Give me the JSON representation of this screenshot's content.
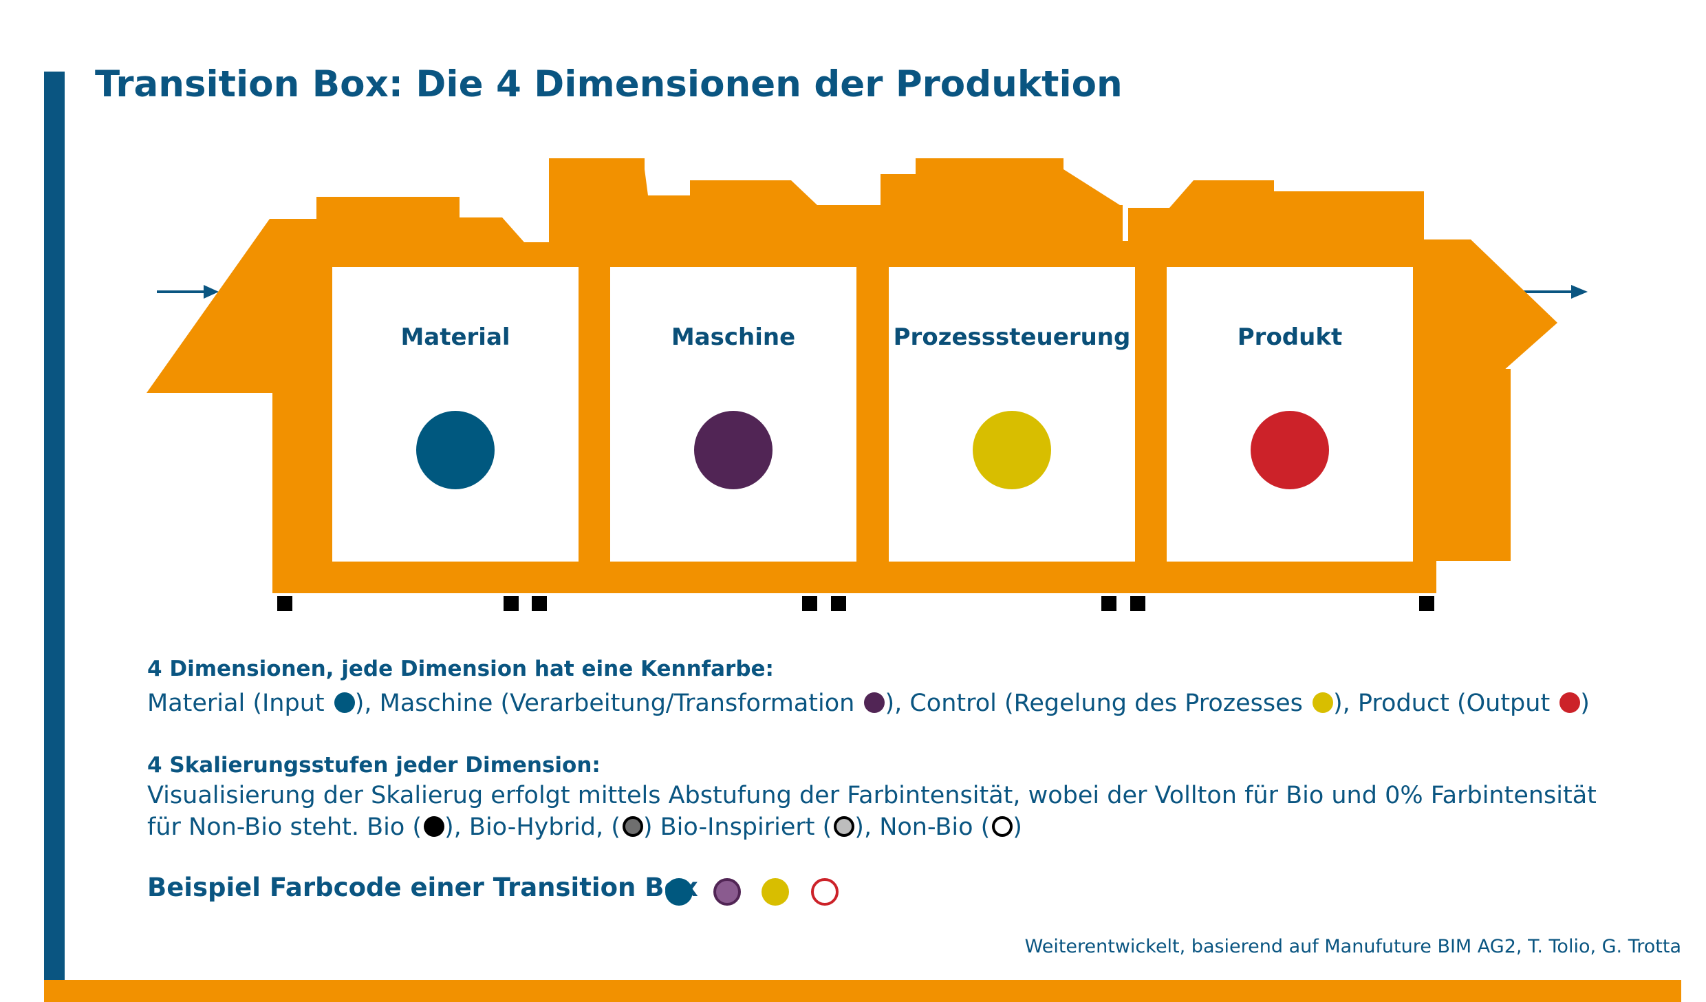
{
  "title": "Transition Box: Die 4 Dimensionen der Produktion",
  "colors": {
    "accent_blue": "#0a5581",
    "machine_orange": "#f29100",
    "material": "#00587f",
    "maschine": "#512555",
    "prozesssteuerung": "#d8be00",
    "produkt": "#cc2229"
  },
  "dimensions": [
    {
      "label": "Material",
      "color": "#00587f"
    },
    {
      "label": "Maschine",
      "color": "#512555"
    },
    {
      "label": "Prozesssteuerung",
      "color": "#d8be00"
    },
    {
      "label": "Produkt",
      "color": "#cc2229"
    }
  ],
  "legend": {
    "heading1": "4 Dimensionen, jede Dimension hat eine Kennfarbe:",
    "dim_line": {
      "p1": "Material (Input ",
      "p2": "), Maschine (Verarbeitung/Transformation ",
      "p3": "), Control (Regelung des Prozesses ",
      "p4": "), Product (Output ",
      "p5": ")"
    },
    "heading2": "4 Skalierungsstufen jeder Dimension:",
    "scale_line1": "Visualisierung der Skalierug erfolgt mittels Abstufung der Farbintensität, wobei der Vollton für Bio und 0% Farbintensität",
    "scale_line2": {
      "p1": "für Non-Bio steht. Bio (",
      "p2": "), Bio-Hybrid, (",
      "p3": ") Bio-Inspiriert (",
      "p4": "), Non-Bio (",
      "p5": ")"
    }
  },
  "example": {
    "title": "Beispiel Farbcode einer Transition Box",
    "dots": [
      {
        "color": "#00587f",
        "style": "filled"
      },
      {
        "color": "#512555",
        "style": "tint"
      },
      {
        "color": "#d8be00",
        "style": "filled"
      },
      {
        "color": "#cc2229",
        "style": "outline"
      }
    ]
  },
  "credit": "Weiterentwickelt, basierend auf Manufuture BIM AG2, T. Tolio, G. Trotta"
}
